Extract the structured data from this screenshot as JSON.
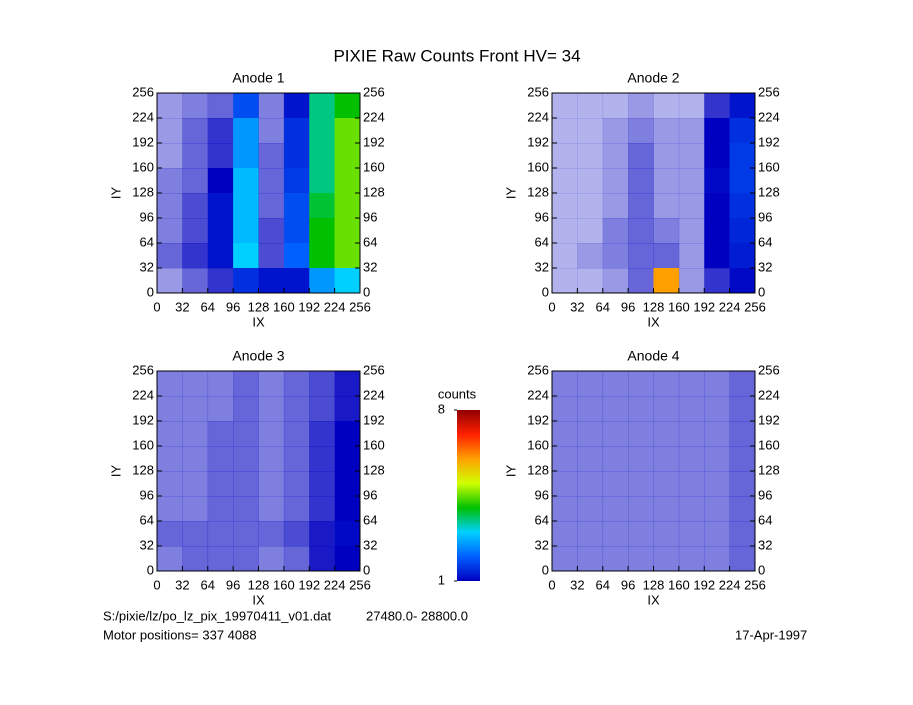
{
  "chart_data": {
    "type": "heatmap",
    "title": "PIXIE Raw Counts Front HV= 34",
    "xlabel": "IX",
    "ylabel": "IY",
    "xlim": [
      0,
      256
    ],
    "ylim": [
      0,
      256
    ],
    "xticks": [
      0,
      32,
      64,
      96,
      128,
      160,
      192,
      224,
      256
    ],
    "yticks": [
      0,
      32,
      64,
      96,
      128,
      160,
      192,
      224,
      256
    ],
    "panels": [
      {
        "title": "Anode 1",
        "values": [
          [
            0.4,
            0.5,
            0.6,
            1.8,
            0.5,
            1.2,
            3.5,
            4
          ],
          [
            0.4,
            0.6,
            0.8,
            2.5,
            0.5,
            1.5,
            3.5,
            4.5
          ],
          [
            0.4,
            0.6,
            0.8,
            2.5,
            0.6,
            1.5,
            3.5,
            4.5
          ],
          [
            0.5,
            0.6,
            1,
            2.8,
            0.6,
            1.6,
            3.5,
            4.5
          ],
          [
            0.5,
            0.7,
            1.2,
            2.8,
            0.6,
            1.8,
            3.8,
            4.5
          ],
          [
            0.5,
            0.7,
            1.2,
            2.8,
            0.7,
            1.8,
            4,
            4.5
          ],
          [
            0.6,
            0.8,
            1.2,
            3,
            0.7,
            2,
            4,
            4.5
          ],
          [
            0.4,
            0.6,
            0.8,
            1.5,
            1.2,
            1.2,
            2.5,
            3
          ]
        ]
      },
      {
        "title": "Anode 2",
        "values": [
          [
            0.3,
            0.3,
            0.3,
            0.4,
            0.3,
            0.3,
            0.8,
            1.2
          ],
          [
            0.3,
            0.3,
            0.4,
            0.5,
            0.4,
            0.4,
            1,
            1.5
          ],
          [
            0.3,
            0.3,
            0.4,
            0.6,
            0.4,
            0.4,
            1,
            1.6
          ],
          [
            0.3,
            0.3,
            0.4,
            0.6,
            0.4,
            0.4,
            1.1,
            1.6
          ],
          [
            0.3,
            0.3,
            0.4,
            0.6,
            0.4,
            0.4,
            1,
            1.5
          ],
          [
            0.3,
            0.3,
            0.5,
            0.6,
            0.5,
            0.4,
            1,
            1.4
          ],
          [
            0.3,
            0.4,
            0.5,
            0.6,
            0.6,
            0.4,
            1,
            1.3
          ],
          [
            0.3,
            0.3,
            0.4,
            0.6,
            6,
            0.4,
            0.8,
            1.1
          ]
        ]
      },
      {
        "title": "Anode 3",
        "values": [
          [
            0.5,
            0.5,
            0.5,
            0.6,
            0.5,
            0.6,
            0.7,
            0.9
          ],
          [
            0.5,
            0.5,
            0.5,
            0.6,
            0.5,
            0.6,
            0.7,
            0.9
          ],
          [
            0.5,
            0.5,
            0.6,
            0.6,
            0.5,
            0.6,
            0.8,
            1
          ],
          [
            0.5,
            0.5,
            0.6,
            0.6,
            0.5,
            0.6,
            0.8,
            1
          ],
          [
            0.5,
            0.5,
            0.6,
            0.6,
            0.5,
            0.6,
            0.8,
            1
          ],
          [
            0.5,
            0.5,
            0.6,
            0.6,
            0.5,
            0.6,
            0.8,
            1
          ],
          [
            0.6,
            0.6,
            0.6,
            0.6,
            0.6,
            0.7,
            0.9,
            1.1
          ],
          [
            0.5,
            0.6,
            0.6,
            0.6,
            0.5,
            0.6,
            0.9,
            1
          ]
        ]
      },
      {
        "title": "Anode 4",
        "values": [
          [
            0.5,
            0.5,
            0.5,
            0.5,
            0.5,
            0.5,
            0.5,
            0.6
          ],
          [
            0.5,
            0.5,
            0.5,
            0.5,
            0.5,
            0.5,
            0.5,
            0.6
          ],
          [
            0.5,
            0.5,
            0.5,
            0.5,
            0.5,
            0.5,
            0.5,
            0.6
          ],
          [
            0.5,
            0.5,
            0.5,
            0.5,
            0.5,
            0.5,
            0.5,
            0.6
          ],
          [
            0.5,
            0.5,
            0.5,
            0.5,
            0.5,
            0.5,
            0.5,
            0.6
          ],
          [
            0.5,
            0.5,
            0.5,
            0.5,
            0.5,
            0.5,
            0.5,
            0.6
          ],
          [
            0.5,
            0.5,
            0.5,
            0.5,
            0.5,
            0.5,
            0.5,
            0.6
          ],
          [
            0.5,
            0.5,
            0.5,
            0.5,
            0.5,
            0.5,
            0.5,
            0.6
          ]
        ]
      }
    ],
    "colorbar": {
      "label": "counts",
      "lim": [
        1,
        8
      ],
      "ticks": [
        1,
        8
      ],
      "colors": [
        "#0000c0",
        "#0060ff",
        "#00d0ff",
        "#00c000",
        "#d0ff00",
        "#ffa000",
        "#ff2000",
        "#900000"
      ]
    },
    "footer": {
      "file": "S:/pixie/lz/po_lz_pix_19970411_v01.dat",
      "range": "27480.0- 28800.0",
      "motor": "Motor positions= 337 4088",
      "date": "17-Apr-1997"
    }
  }
}
